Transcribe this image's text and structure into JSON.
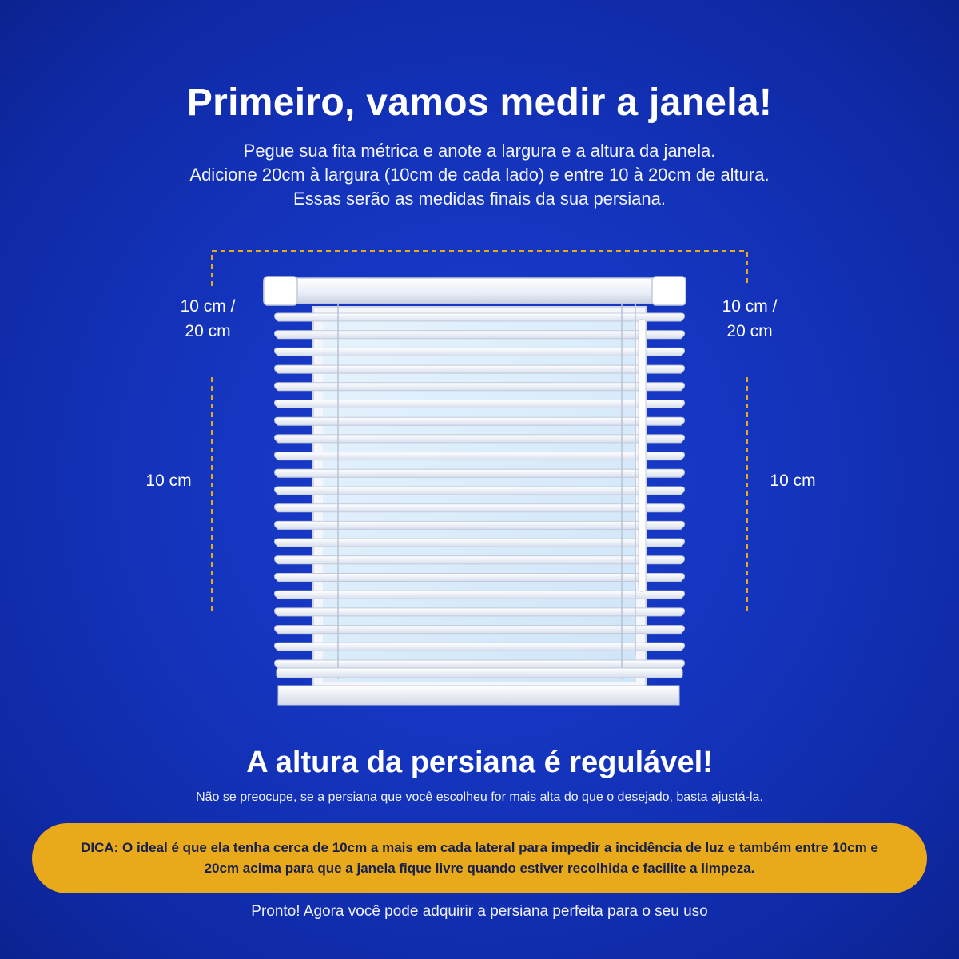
{
  "header": {
    "title": "Primeiro, vamos medir a janela!",
    "subtitle_lines": [
      "Pegue sua fita métrica e anote a largura e a altura da janela.",
      "Adicione 20cm à largura (10cm de cada lado) e entre 10 à 20cm de altura.",
      "Essas serão as medidas finais da sua persiana."
    ]
  },
  "diagram": {
    "left_top_label": "10 cm /",
    "left_top_label_2": "20 cm",
    "left_side_label": "10 cm",
    "right_top_label": "10 cm /",
    "right_top_label_2": "20 cm",
    "right_side_label": "10 cm",
    "guide_color": "#e8a91a",
    "slat_count": 21
  },
  "adjustable": {
    "heading": "A altura da persiana é regulável!",
    "note": "Não se preocupe, se a persiana que você escolheu for mais alta do que o desejado, basta ajustá-la."
  },
  "tip": {
    "text": "DICA: O ideal é que ela tenha cerca de 10cm a mais em cada lateral para impedir a incidência de luz e também entre 10cm e 20cm acima para que a janela fique livre quando estiver recolhida e facilite a limpeza.",
    "background": "#e8a91a"
  },
  "footer": {
    "text": "Pronto! Agora você pode adquirir a persiana perfeita para o seu uso"
  }
}
